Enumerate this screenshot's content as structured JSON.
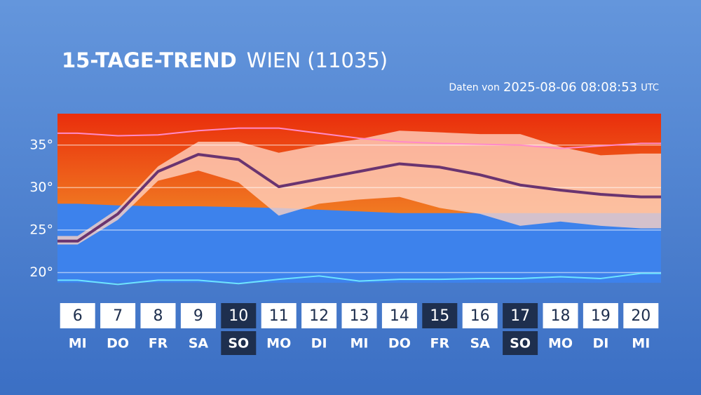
{
  "chart_data": {
    "type": "line",
    "title": "15-TAGE-TREND",
    "subtitle": "WIEN (11035)",
    "source_prefix": "Daten von",
    "source_time": "2025-08-06 08:08:53",
    "source_zone": "UTC",
    "categories": [
      "6",
      "7",
      "8",
      "9",
      "10",
      "11",
      "12",
      "13",
      "14",
      "15",
      "16",
      "17",
      "18",
      "19",
      "20"
    ],
    "weekdays": [
      "MI",
      "DO",
      "FR",
      "SA",
      "SO",
      "MO",
      "DI",
      "MI",
      "DO",
      "FR",
      "SA",
      "SO",
      "MO",
      "DI",
      "MI"
    ],
    "day_highlight": [
      false,
      false,
      false,
      false,
      true,
      false,
      false,
      false,
      false,
      true,
      false,
      true,
      false,
      false,
      false
    ],
    "weekday_highlight": [
      false,
      false,
      false,
      false,
      true,
      false,
      false,
      false,
      false,
      false,
      false,
      true,
      false,
      false,
      false
    ],
    "ylim": [
      18.8,
      38.7
    ],
    "yticks": [
      {
        "value": 20,
        "label": "20°"
      },
      {
        "value": 25,
        "label": "25°"
      },
      {
        "value": 30,
        "label": "30°"
      },
      {
        "value": 35,
        "label": "35°"
      }
    ],
    "grid": true,
    "background": {
      "hot_color": "#ec5a18",
      "cold_color": "#3d82ec",
      "threshold": [
        28.1,
        27.9,
        27.8,
        27.8,
        27.7,
        27.6,
        27.4,
        27.2,
        27.0,
        27.0,
        27.0,
        27.0,
        27.0,
        27.0,
        27.0
      ]
    },
    "band": {
      "color": "rgba(255,212,195,0.78)",
      "lower": [
        23.3,
        26.2,
        30.8,
        32.0,
        30.6,
        26.7,
        28.1,
        28.6,
        28.9,
        27.6,
        26.9,
        25.5,
        26.0,
        25.5,
        25.2
      ],
      "upper": [
        24.3,
        27.5,
        32.5,
        35.4,
        35.4,
        34.1,
        35.0,
        35.7,
        36.7,
        36.5,
        36.3,
        36.3,
        34.8,
        33.8,
        34.0
      ]
    },
    "series": [
      {
        "color": "#ff8ac8",
        "width": 2,
        "values": [
          36.4,
          36.1,
          36.2,
          36.7,
          37.0,
          37.0,
          36.4,
          35.8,
          35.4,
          35.2,
          35.1,
          35.0,
          34.6,
          34.9,
          35.2
        ]
      },
      {
        "color": "#6ee4ff",
        "width": 2,
        "values": [
          19.1,
          18.6,
          19.1,
          19.1,
          18.7,
          19.2,
          19.6,
          19.0,
          19.2,
          19.2,
          19.3,
          19.3,
          19.5,
          19.3,
          19.9
        ]
      },
      {
        "color": "#6a3470",
        "width": 4,
        "values": [
          23.7,
          26.9,
          31.9,
          33.9,
          33.3,
          30.1,
          31.0,
          31.9,
          32.8,
          32.4,
          31.5,
          30.3,
          29.7,
          29.2,
          28.9
        ]
      }
    ]
  }
}
